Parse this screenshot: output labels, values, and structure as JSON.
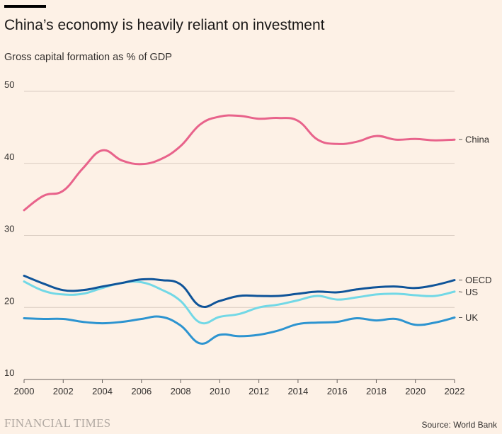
{
  "title": "China’s economy is heavily reliant on investment",
  "subtitle": "Gross capital formation as % of GDP",
  "footer": {
    "publisher": "FINANCIAL TIMES",
    "source": "Source: World Bank"
  },
  "chart_data": {
    "type": "line",
    "title": "China’s economy is heavily reliant on investment",
    "subtitle": "Gross capital formation as % of GDP",
    "xlabel": "",
    "ylabel": "",
    "xlim": [
      2000,
      2022
    ],
    "ylim": [
      10,
      50
    ],
    "x_ticks": [
      "2000",
      "2002",
      "2004",
      "2006",
      "2008",
      "2010",
      "2012",
      "2014",
      "2016",
      "2018",
      "2020",
      "2022"
    ],
    "y_ticks": [
      "10",
      "20",
      "30",
      "40",
      "50"
    ],
    "grid": "horizontal",
    "legend": "direct labels at right end of lines",
    "x": [
      2000,
      2001,
      2002,
      2003,
      2004,
      2005,
      2006,
      2007,
      2008,
      2009,
      2010,
      2011,
      2012,
      2013,
      2014,
      2015,
      2016,
      2017,
      2018,
      2019,
      2020,
      2021,
      2022
    ],
    "series": [
      {
        "name": "China",
        "color": "#e8638b",
        "values": [
          33.5,
          35.5,
          36.2,
          39.3,
          41.8,
          40.4,
          39.9,
          40.6,
          42.4,
          45.4,
          46.5,
          46.6,
          46.2,
          46.3,
          45.9,
          43.3,
          42.7,
          43.0,
          43.8,
          43.3,
          43.4,
          43.2,
          43.3
        ]
      },
      {
        "name": "OECD",
        "color": "#0f5499",
        "values": [
          24.4,
          23.3,
          22.4,
          22.4,
          22.9,
          23.4,
          23.9,
          23.8,
          23.2,
          20.2,
          20.9,
          21.6,
          21.6,
          21.6,
          21.9,
          22.2,
          22.1,
          22.5,
          22.8,
          22.9,
          22.7,
          23.1,
          23.8
        ]
      },
      {
        "name": "US",
        "color": "#72d8e6",
        "values": [
          23.6,
          22.3,
          21.8,
          21.9,
          22.7,
          23.4,
          23.5,
          22.5,
          20.9,
          17.9,
          18.7,
          19.1,
          20.0,
          20.4,
          21.0,
          21.6,
          21.1,
          21.4,
          21.8,
          21.9,
          21.7,
          21.6,
          22.2
        ]
      },
      {
        "name": "UK",
        "color": "#2d94d0",
        "values": [
          18.5,
          18.4,
          18.4,
          18.0,
          17.8,
          18.0,
          18.4,
          18.7,
          17.5,
          15.0,
          16.2,
          16.0,
          16.2,
          16.8,
          17.7,
          17.9,
          18.0,
          18.5,
          18.2,
          18.4,
          17.6,
          17.9,
          18.6
        ]
      }
    ]
  }
}
